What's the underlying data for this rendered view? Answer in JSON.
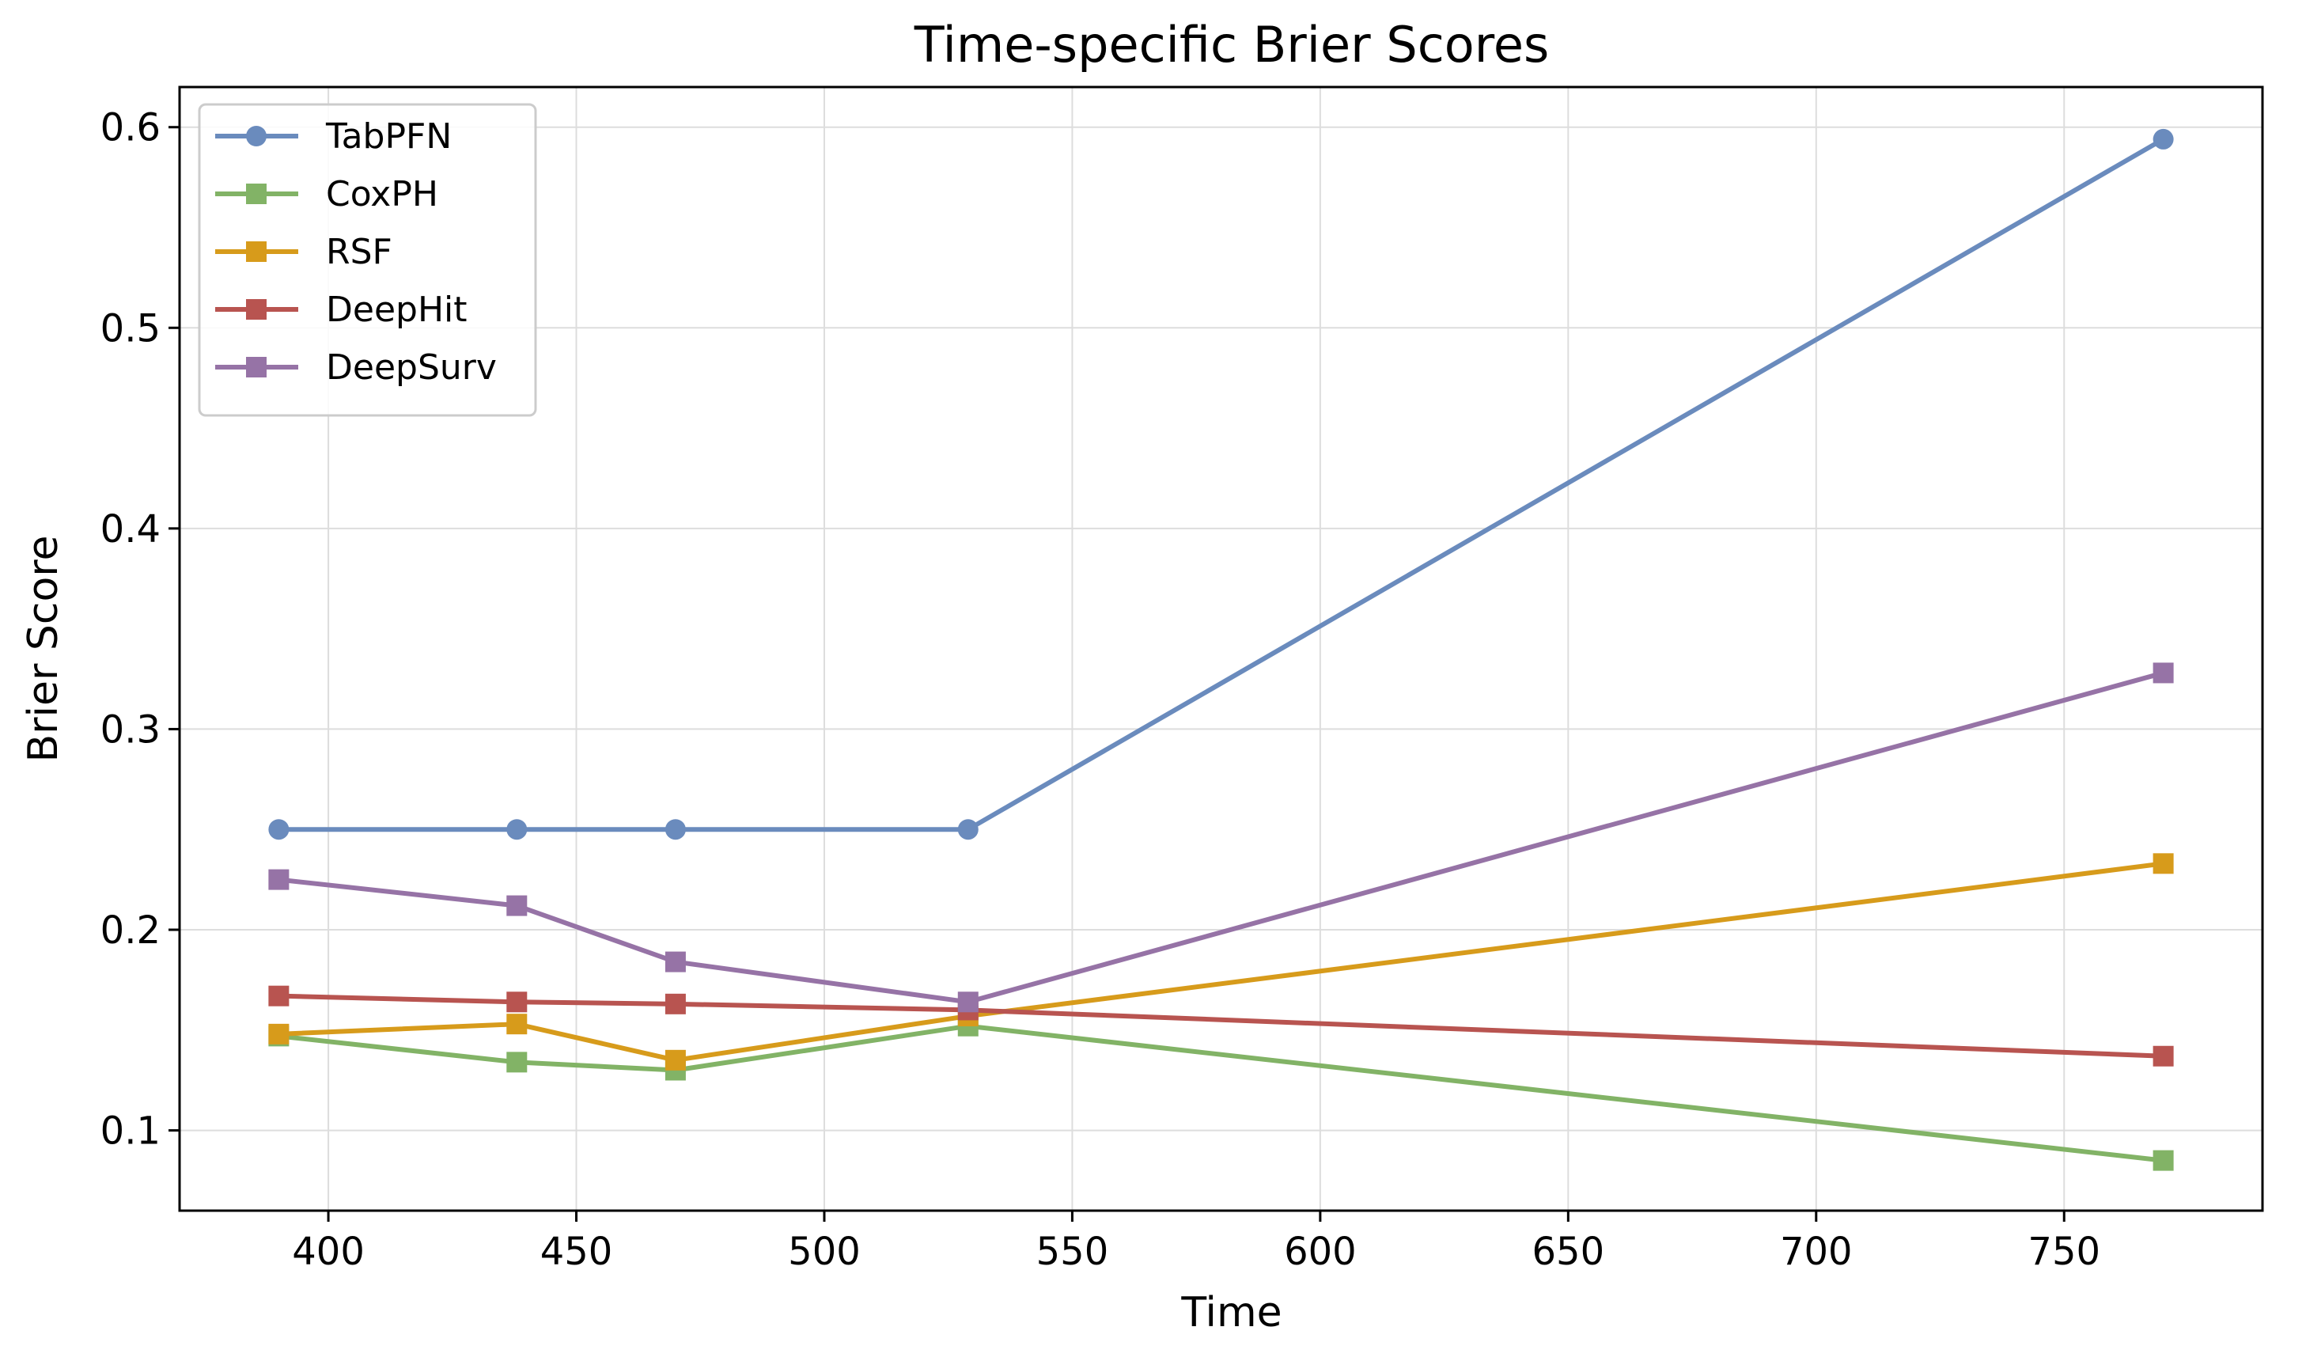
{
  "chart_data": {
    "type": "line",
    "title": "Time-specific Brier Scores",
    "xlabel": "Time",
    "ylabel": "Brier Score",
    "xlim": [
      370,
      790
    ],
    "ylim": [
      0.06,
      0.62
    ],
    "xticks": [
      400,
      450,
      500,
      550,
      600,
      650,
      700,
      750
    ],
    "yticks": [
      0.1,
      0.2,
      0.3,
      0.4,
      0.5,
      0.6
    ],
    "grid": true,
    "legend_position": "top-left",
    "x": [
      390,
      438,
      470,
      529,
      770
    ],
    "series": [
      {
        "name": "TabPFN",
        "color": "#6a8bbd",
        "marker": "circle",
        "values": [
          0.25,
          0.25,
          0.25,
          0.25,
          0.594
        ]
      },
      {
        "name": "CoxPH",
        "color": "#82b366",
        "marker": "square",
        "values": [
          0.147,
          0.134,
          0.13,
          0.152,
          0.085
        ]
      },
      {
        "name": "RSF",
        "color": "#d79b1b",
        "marker": "square",
        "values": [
          0.148,
          0.153,
          0.135,
          0.157,
          0.233
        ]
      },
      {
        "name": "DeepHit",
        "color": "#b85450",
        "marker": "square",
        "values": [
          0.167,
          0.164,
          0.163,
          0.16,
          0.137
        ]
      },
      {
        "name": "DeepSurv",
        "color": "#9673a6",
        "marker": "square",
        "values": [
          0.225,
          0.212,
          0.184,
          0.164,
          0.328
        ]
      }
    ]
  }
}
